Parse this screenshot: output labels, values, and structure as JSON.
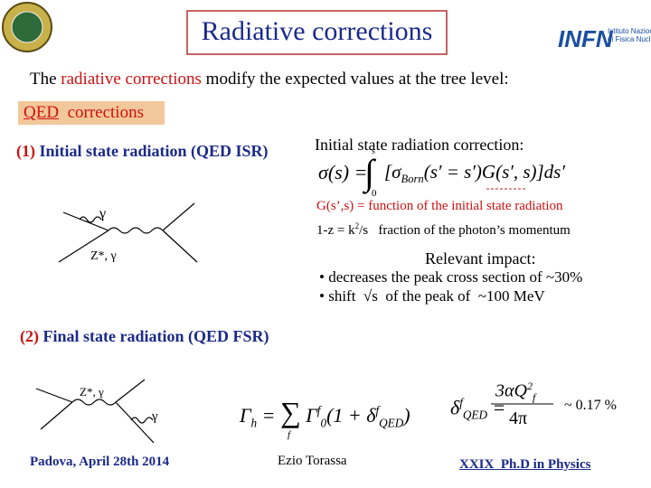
{
  "header": {
    "title": "Radiative corrections",
    "logo_right": {
      "mark": "INFN",
      "name_lines": [
        "Istituto Nazionale",
        "di Fisica Nucleare"
      ]
    }
  },
  "intro": [
    "The ",
    "radiative corrections",
    " modify the expected values at the tree level:"
  ],
  "section_label": {
    "underlined": "QED",
    "rest": "corrections"
  },
  "isr": {
    "heading": {
      "number": "(1)",
      "text": "Initial state radiation (QED ISR)"
    },
    "diagram": {
      "photon": "γ",
      "boson": "Z*, γ"
    },
    "correction_title": "Initial state radiation correction:",
    "formula": {
      "lhs": "σ(s) =",
      "integral": "∫",
      "upper": "s",
      "lower": "0",
      "body": "[σ",
      "body_sub": "Born",
      "body_rest": "(s′ = s′)G(s′, s)]ds′"
    },
    "g_def": "G(s’,s) = function of the initial state radiation",
    "z_def": {
      "lhs": "1-z = k",
      "sup": "2",
      "rhs": "/s",
      "desc": "fraction of the photon’s momentum"
    },
    "impact": {
      "title": "Relevant impact:",
      "bullets": [
        "• decreases the peak cross section of ~30%",
        "• shift  √s  of the peak of  ~100 MeV"
      ]
    }
  },
  "fsr": {
    "heading": {
      "number": "(2)",
      "text": "Final state radiation (QED FSR)"
    },
    "diagram": {
      "boson": "Z*, γ",
      "photon": "γ"
    },
    "width_formula": {
      "lhs": "Γ",
      "lhs_sub": "h",
      "eq": "=",
      "sum": "∑",
      "sum_sub": "f",
      "term": "Γ",
      "term_sup": "f",
      "term_sub": "0",
      "paren": "(1 + δ",
      "paren_sup": "f",
      "paren_sub": "QED",
      "close": ")"
    },
    "delta_formula": {
      "lhs": "δ",
      "lhs_sup": "f",
      "lhs_sub": "QED",
      "eq": "=",
      "numerator": "3αQ",
      "num_sup": "2",
      "num_sub": "f",
      "denominator": "4π"
    },
    "delta_value": "~ 0.17 %"
  },
  "footer": {
    "place_date": "Padova, April 28th 2014",
    "author": "Ezio Torassa",
    "event": "XXIX  Ph.D in Physics"
  }
}
